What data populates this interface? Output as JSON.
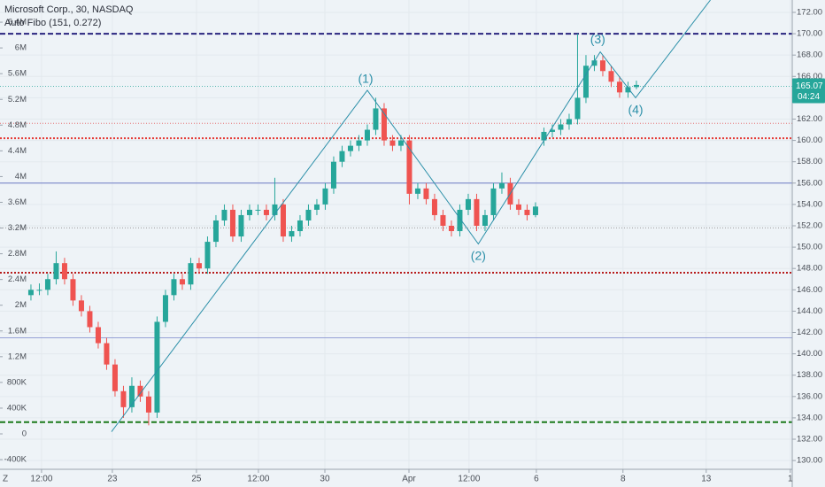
{
  "chart_data": {
    "type": "candlestick",
    "title": "Microsoft Corp., 30, NASDAQ",
    "subtitle": "Auto Fibo (151, 0.272)",
    "corner_label": "Z",
    "up_color": "#26a69a",
    "down_color": "#ef5350",
    "grid": true,
    "x": [
      0,
      1,
      2,
      3,
      4,
      5,
      6,
      7,
      8,
      9,
      10,
      11,
      12,
      13,
      14,
      15,
      16,
      17,
      18,
      19,
      20,
      21,
      22,
      23,
      24,
      25,
      26,
      27,
      28,
      29,
      30,
      31,
      32,
      33,
      34,
      35,
      36,
      37,
      38,
      39,
      40,
      41,
      42,
      43,
      44,
      45,
      46,
      47,
      48,
      49,
      50,
      51,
      52,
      53,
      54,
      55,
      56,
      57,
      58,
      59,
      60,
      61,
      62,
      63,
      64,
      65,
      66,
      67,
      68,
      69,
      70,
      71,
      72
    ],
    "open": [
      145.5,
      146,
      146,
      147,
      148.5,
      147,
      145,
      144,
      142.5,
      141,
      139,
      136.5,
      135,
      137,
      136,
      134.5,
      143,
      145.5,
      147,
      146.5,
      148.5,
      148,
      150.5,
      152.5,
      153.5,
      151,
      153,
      153.5,
      153.5,
      153,
      154,
      151,
      151.5,
      152.5,
      153.5,
      154,
      155.5,
      158,
      159,
      159.5,
      160,
      161,
      163,
      160,
      159.5,
      160,
      155,
      155.5,
      154.5,
      153,
      152,
      151.5,
      153.5,
      154.5,
      152,
      153,
      155.5,
      156,
      154,
      153.5,
      153,
      160,
      160.8,
      161,
      161.5,
      162,
      164,
      167,
      167.5,
      166.5,
      165.5,
      164.5,
      165
    ],
    "high": [
      146.5,
      146.6,
      147.5,
      149.6,
      149,
      147.5,
      145.5,
      144.5,
      143,
      141.5,
      139.5,
      137,
      137.8,
      137.5,
      136.5,
      143.5,
      146,
      147.5,
      147.5,
      149,
      149,
      151,
      153,
      154,
      154,
      153.5,
      154,
      154,
      154,
      156.5,
      154.5,
      152,
      153,
      154,
      154.5,
      156,
      158.5,
      159.5,
      160,
      160.5,
      161.5,
      164,
      163.5,
      160.5,
      160.5,
      160.5,
      156,
      156,
      155,
      153.5,
      152.5,
      154,
      155,
      155,
      153.5,
      156,
      157,
      156.5,
      154.5,
      154,
      154.2,
      161.2,
      161.5,
      162,
      162.5,
      170,
      168,
      168,
      168,
      167,
      166,
      165.5,
      165.6
    ],
    "low": [
      145,
      145.5,
      145.5,
      146.5,
      146.5,
      144.5,
      143.5,
      142,
      140.5,
      138.5,
      136,
      134,
      134.5,
      135.5,
      133.3,
      134,
      142.5,
      145,
      146,
      146,
      147.5,
      147.5,
      150,
      152,
      150.5,
      150.5,
      152.5,
      153,
      152.5,
      152.5,
      150.5,
      150.5,
      151,
      152,
      153,
      153.5,
      155,
      157.5,
      158.5,
      159,
      159.5,
      160.5,
      159.5,
      159,
      159,
      154,
      154.5,
      154,
      152.5,
      151.5,
      151,
      151,
      153,
      151.5,
      151.5,
      152.5,
      155,
      153.5,
      153,
      152.5,
      152.8,
      159.5,
      160.3,
      160.5,
      161,
      161.5,
      163.5,
      166.5,
      166,
      165,
      164,
      164,
      164.8
    ],
    "close": [
      146,
      146,
      147,
      148.5,
      147,
      145,
      144,
      142.5,
      141,
      139,
      136.5,
      135,
      137,
      136,
      134.5,
      143,
      145.5,
      147,
      146.5,
      148.5,
      148,
      150.5,
      152.5,
      153.5,
      151,
      153,
      153.5,
      153.5,
      153,
      154,
      151,
      151.5,
      152.5,
      153.5,
      154,
      155.5,
      158,
      159,
      159.5,
      160,
      161,
      163,
      160,
      159.5,
      160,
      155,
      155.5,
      154.5,
      153,
      152,
      151.5,
      153.5,
      154.5,
      152,
      153,
      155.5,
      156,
      154,
      153.5,
      153,
      153.8,
      160.8,
      161,
      161.5,
      162,
      164,
      167,
      167.5,
      166.5,
      165.5,
      164.5,
      165,
      165.2
    ],
    "xlim": [
      -3.68,
      90.53
    ],
    "xticks": [
      {
        "value": 1.26,
        "label": "12:00"
      },
      {
        "value": 9.68,
        "label": "23"
      },
      {
        "value": 19.68,
        "label": "25"
      },
      {
        "value": 27.05,
        "label": "12:00"
      },
      {
        "value": 34.95,
        "label": "30"
      },
      {
        "value": 44.95,
        "label": "Apr"
      },
      {
        "value": 52.1,
        "label": "12:00"
      },
      {
        "value": 60.1,
        "label": "6"
      },
      {
        "value": 70.4,
        "label": "8"
      },
      {
        "value": 80.3,
        "label": "13"
      },
      {
        "value": 90.3,
        "label": "1"
      }
    ],
    "ylim": [
      129.18,
      173.16
    ],
    "yticks": [
      {
        "value": 172,
        "label": "172.00"
      },
      {
        "value": 170,
        "label": "170.00"
      },
      {
        "value": 168,
        "label": "168.00"
      },
      {
        "value": 166,
        "label": "166.00"
      },
      {
        "value": 164,
        "label": "164.00"
      },
      {
        "value": 162,
        "label": "162.00"
      },
      {
        "value": 160,
        "label": "160.00"
      },
      {
        "value": 158,
        "label": "158.00"
      },
      {
        "value": 156,
        "label": "156.00"
      },
      {
        "value": 154,
        "label": "154.00"
      },
      {
        "value": 152,
        "label": "152.00"
      },
      {
        "value": 150,
        "label": "150.00"
      },
      {
        "value": 148,
        "label": "148.00"
      },
      {
        "value": 146,
        "label": "146.00"
      },
      {
        "value": 144,
        "label": "144.00"
      },
      {
        "value": 142,
        "label": "142.00"
      },
      {
        "value": 140,
        "label": "140.00"
      },
      {
        "value": 138,
        "label": "138.00"
      },
      {
        "value": 136,
        "label": "136.00"
      },
      {
        "value": 134,
        "label": "134.00"
      },
      {
        "value": 132,
        "label": "132.00"
      },
      {
        "value": 130,
        "label": "130.00"
      }
    ],
    "y2lim": [
      -550600,
      6745000
    ],
    "y2ticks": [
      {
        "value": 6400000,
        "label": "6.4M"
      },
      {
        "value": 6000000,
        "label": "6M"
      },
      {
        "value": 5600000,
        "label": "5.6M"
      },
      {
        "value": 5200000,
        "label": "5.2M"
      },
      {
        "value": 4800000,
        "label": "4.8M"
      },
      {
        "value": 4400000,
        "label": "4.4M"
      },
      {
        "value": 4000000,
        "label": "4M"
      },
      {
        "value": 3600000,
        "label": "3.6M"
      },
      {
        "value": 3200000,
        "label": "3.2M"
      },
      {
        "value": 2800000,
        "label": "2.8M"
      },
      {
        "value": 2400000,
        "label": "2.4M"
      },
      {
        "value": 2000000,
        "label": "2M"
      },
      {
        "value": 1600000,
        "label": "1.6M"
      },
      {
        "value": 1200000,
        "label": "1.2M"
      },
      {
        "value": 800000,
        "label": "800K"
      },
      {
        "value": 400000,
        "label": "400K"
      },
      0,
      {
        "value": -400000,
        "label": "-400K"
      }
    ],
    "levels": [
      {
        "value": 170,
        "color": "#2a2580",
        "style": "dashed-thick"
      },
      {
        "value": 161.6,
        "color": "#e57373",
        "style": "dotted"
      },
      {
        "value": 160.2,
        "color": "#e53935",
        "style": "dotted-thick"
      },
      {
        "value": 156,
        "color": "#5c6bc0",
        "style": "solid"
      },
      {
        "value": 151.8,
        "color": "#9e9e9e",
        "style": "dotted"
      },
      {
        "value": 147.6,
        "color": "#b71c1c",
        "style": "dotted-thick"
      },
      {
        "value": 141.5,
        "color": "#7986cb",
        "style": "solid"
      },
      {
        "value": 133.6,
        "color": "#1b7a1b",
        "style": "dashed-thick"
      }
    ],
    "wave": {
      "color": "#2b8fa8",
      "x": [
        9.58,
        40.0,
        53.2,
        67.7,
        71.9,
        80.8
      ],
      "y": [
        132.7,
        164.7,
        150.3,
        168.3,
        164.0,
        173.16
      ]
    },
    "wave_labels": [
      {
        "text": "(1)",
        "x": 39.8,
        "y": 165.7
      },
      {
        "text": "(2)",
        "x": 53.2,
        "y": 149.1
      },
      {
        "text": "(3)",
        "x": 67.4,
        "y": 169.4
      },
      {
        "text": "(4)",
        "x": 71.9,
        "y": 162.8
      }
    ],
    "last_price": 165.07,
    "last_color": "#26a69a",
    "countdown": "04:24"
  }
}
